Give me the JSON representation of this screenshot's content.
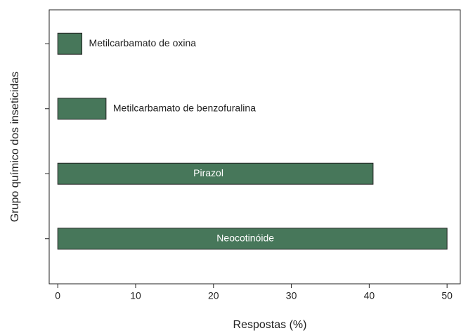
{
  "chart_data": {
    "type": "barh",
    "xlabel": "Respostas (%)",
    "ylabel": "Grupo químico dos inseticidas",
    "categories": [
      "Metilcarbamato de oxina",
      "Metilcarbamato de benzofuralina",
      "Pirazol",
      "Neocotinóide"
    ],
    "values": [
      3.1,
      6.2,
      40.5,
      50
    ],
    "color": "#47775a",
    "xlim": [
      -1.1,
      51.7
    ],
    "xticks": [
      0,
      10,
      20,
      30,
      40,
      50
    ]
  }
}
